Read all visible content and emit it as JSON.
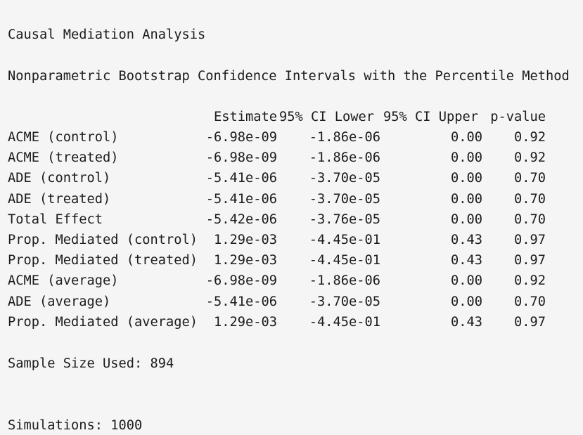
{
  "title": "Causal Mediation Analysis",
  "subtitle": "Nonparametric Bootstrap Confidence Intervals with the Percentile Method",
  "table": {
    "columns": [
      "Estimate",
      "95% CI Lower",
      "95% CI Upper",
      "p-value"
    ],
    "rows": [
      {
        "label": "ACME (control)",
        "estimate": "-6.98e-09",
        "ci_lower": "-1.86e-06",
        "ci_upper": "0.00",
        "p_value": "0.92"
      },
      {
        "label": "ACME (treated)",
        "estimate": "-6.98e-09",
        "ci_lower": "-1.86e-06",
        "ci_upper": "0.00",
        "p_value": "0.92"
      },
      {
        "label": "ADE (control)",
        "estimate": "-5.41e-06",
        "ci_lower": "-3.70e-05",
        "ci_upper": "0.00",
        "p_value": "0.70"
      },
      {
        "label": "ADE (treated)",
        "estimate": "-5.41e-06",
        "ci_lower": "-3.70e-05",
        "ci_upper": "0.00",
        "p_value": "0.70"
      },
      {
        "label": "Total Effect",
        "estimate": "-5.42e-06",
        "ci_lower": "-3.76e-05",
        "ci_upper": "0.00",
        "p_value": "0.70"
      },
      {
        "label": "Prop. Mediated (control)",
        "estimate": "1.29e-03",
        "ci_lower": "-4.45e-01",
        "ci_upper": "0.43",
        "p_value": "0.97"
      },
      {
        "label": "Prop. Mediated (treated)",
        "estimate": "1.29e-03",
        "ci_lower": "-4.45e-01",
        "ci_upper": "0.43",
        "p_value": "0.97"
      },
      {
        "label": "ACME (average)",
        "estimate": "-6.98e-09",
        "ci_lower": "-1.86e-06",
        "ci_upper": "0.00",
        "p_value": "0.92"
      },
      {
        "label": "ADE (average)",
        "estimate": "-5.41e-06",
        "ci_lower": "-3.70e-05",
        "ci_upper": "0.00",
        "p_value": "0.70"
      },
      {
        "label": "Prop. Mediated (average)",
        "estimate": "1.29e-03",
        "ci_lower": "-4.45e-01",
        "ci_upper": "0.43",
        "p_value": "0.97"
      }
    ]
  },
  "sample_size": "Sample Size Used: 894",
  "simulations": "Simulations: 1000"
}
